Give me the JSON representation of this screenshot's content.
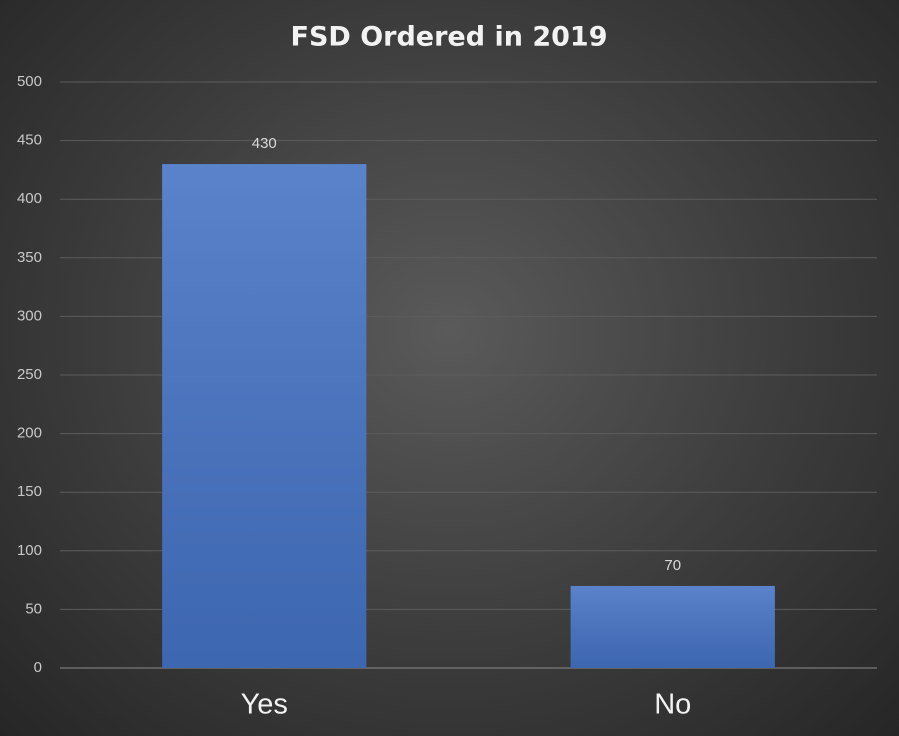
{
  "chart_data": {
    "type": "bar",
    "title": "FSD Ordered in 2019",
    "categories": [
      "Yes",
      "No"
    ],
    "values": [
      430,
      70
    ],
    "color": "#4472c4",
    "ylim": [
      0,
      500
    ],
    "yticks": [
      0,
      50,
      100,
      150,
      200,
      250,
      300,
      350,
      400,
      450,
      500
    ],
    "grid": true
  }
}
